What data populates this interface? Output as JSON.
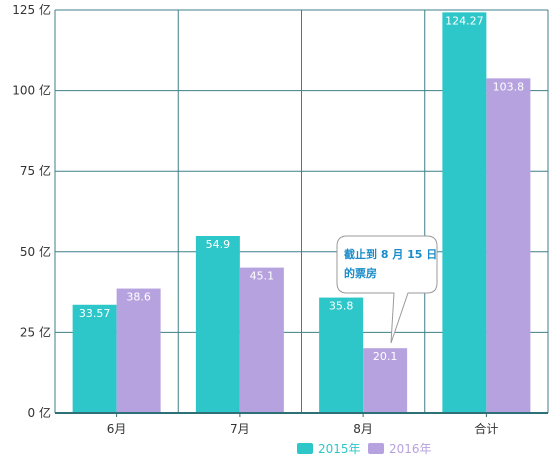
{
  "colors": {
    "series_2015": "#2ec7c9",
    "series_2016": "#b6a2de",
    "grid": "#3f7f88",
    "callout_text": "#1a8cc9"
  },
  "chart_data": {
    "type": "bar",
    "categories": [
      "6月",
      "7月",
      "8月",
      "合计"
    ],
    "series": [
      {
        "name": "2015年",
        "values": [
          33.57,
          54.9,
          35.8,
          124.27
        ]
      },
      {
        "name": "2016年",
        "values": [
          38.6,
          45.1,
          20.1,
          103.8
        ]
      }
    ],
    "ylim": [
      0,
      125
    ],
    "yticks": [
      0,
      25,
      50,
      75,
      100,
      125
    ],
    "yunit": "亿",
    "grid": true,
    "legend": "bottom",
    "annotation": {
      "lines": [
        "截止到 8 月 15 日",
        "的票房"
      ]
    }
  }
}
